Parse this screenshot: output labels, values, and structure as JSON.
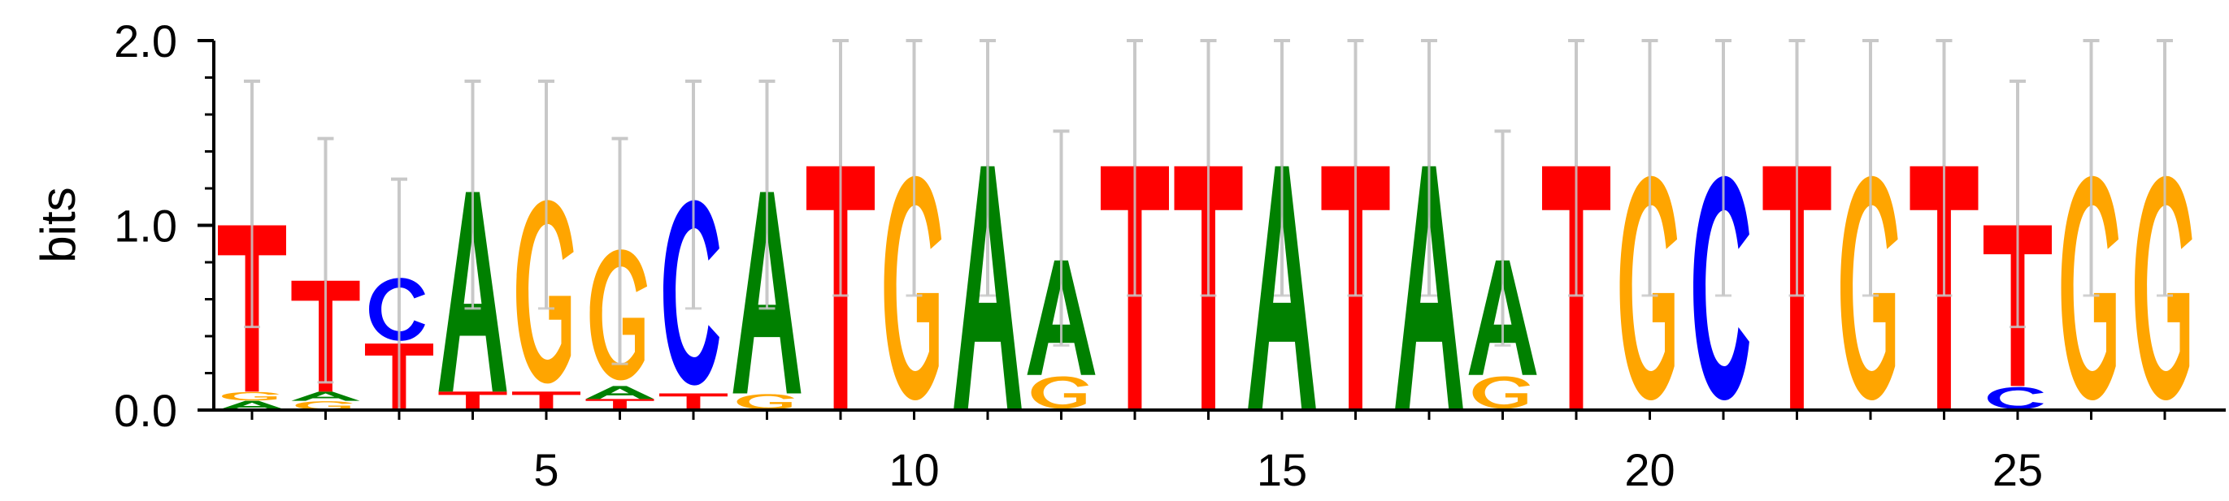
{
  "chart_data": {
    "type": "sequence-logo",
    "ylabel": "bits",
    "ylim": [
      0,
      2.0
    ],
    "y_ticks": [
      "0.0",
      "1.0",
      "2.0"
    ],
    "x_ticks": [
      "5",
      "10",
      "15",
      "20",
      "25"
    ],
    "x_tick_positions": [
      5,
      10,
      15,
      20,
      25
    ],
    "colors": {
      "A": "#008000",
      "C": "#0000ff",
      "G": "#ffa500",
      "T": "#ff0000",
      "error_bar": "#c8c8c8",
      "axis": "#000000"
    },
    "positions": [
      {
        "pos": 1,
        "stack": [
          {
            "base": "A",
            "height": 0.05
          },
          {
            "base": "G",
            "height": 0.05
          },
          {
            "base": "T",
            "height": 0.9
          }
        ],
        "error_bar": [
          0.45,
          1.78
        ]
      },
      {
        "pos": 2,
        "stack": [
          {
            "base": "G",
            "height": 0.05
          },
          {
            "base": "A",
            "height": 0.05
          },
          {
            "base": "T",
            "height": 0.6
          }
        ],
        "error_bar": [
          0.15,
          1.47
        ]
      },
      {
        "pos": 3,
        "stack": [
          {
            "base": "T",
            "height": 0.36
          },
          {
            "base": "C",
            "height": 0.37
          }
        ],
        "error_bar": [
          0.0,
          1.25
        ]
      },
      {
        "pos": 4,
        "stack": [
          {
            "base": "T",
            "height": 0.1
          },
          {
            "base": "A",
            "height": 1.08
          }
        ],
        "error_bar": [
          0.55,
          1.78
        ]
      },
      {
        "pos": 5,
        "stack": [
          {
            "base": "T",
            "height": 0.1
          },
          {
            "base": "G",
            "height": 1.08
          }
        ],
        "error_bar": [
          0.55,
          1.78
        ]
      },
      {
        "pos": 6,
        "stack": [
          {
            "base": "T",
            "height": 0.06
          },
          {
            "base": "A",
            "height": 0.07
          },
          {
            "base": "G",
            "height": 0.77
          }
        ],
        "error_bar": [
          0.25,
          1.47
        ]
      },
      {
        "pos": 7,
        "stack": [
          {
            "base": "T",
            "height": 0.09
          },
          {
            "base": "C",
            "height": 1.09
          }
        ],
        "error_bar": [
          0.55,
          1.78
        ]
      },
      {
        "pos": 8,
        "stack": [
          {
            "base": "G",
            "height": 0.09
          },
          {
            "base": "A",
            "height": 1.09
          }
        ],
        "error_bar": [
          0.55,
          1.78
        ]
      },
      {
        "pos": 9,
        "stack": [
          {
            "base": "T",
            "height": 1.32
          }
        ],
        "error_bar": [
          0.62,
          2.0
        ]
      },
      {
        "pos": 10,
        "stack": [
          {
            "base": "G",
            "height": 1.32
          }
        ],
        "error_bar": [
          0.62,
          2.0
        ]
      },
      {
        "pos": 11,
        "stack": [
          {
            "base": "A",
            "height": 1.32
          }
        ],
        "error_bar": [
          0.62,
          2.0
        ]
      },
      {
        "pos": 12,
        "stack": [
          {
            "base": "G",
            "height": 0.19
          },
          {
            "base": "A",
            "height": 0.62
          }
        ],
        "error_bar": [
          0.35,
          1.51
        ]
      },
      {
        "pos": 13,
        "stack": [
          {
            "base": "T",
            "height": 1.32
          }
        ],
        "error_bar": [
          0.62,
          2.0
        ]
      },
      {
        "pos": 14,
        "stack": [
          {
            "base": "T",
            "height": 1.32
          }
        ],
        "error_bar": [
          0.62,
          2.0
        ]
      },
      {
        "pos": 15,
        "stack": [
          {
            "base": "A",
            "height": 1.32
          }
        ],
        "error_bar": [
          0.62,
          2.0
        ]
      },
      {
        "pos": 16,
        "stack": [
          {
            "base": "T",
            "height": 1.32
          }
        ],
        "error_bar": [
          0.62,
          2.0
        ]
      },
      {
        "pos": 17,
        "stack": [
          {
            "base": "A",
            "height": 1.32
          }
        ],
        "error_bar": [
          0.62,
          2.0
        ]
      },
      {
        "pos": 18,
        "stack": [
          {
            "base": "G",
            "height": 0.19
          },
          {
            "base": "A",
            "height": 0.62
          }
        ],
        "error_bar": [
          0.35,
          1.51
        ]
      },
      {
        "pos": 19,
        "stack": [
          {
            "base": "T",
            "height": 1.32
          }
        ],
        "error_bar": [
          0.62,
          2.0
        ]
      },
      {
        "pos": 20,
        "stack": [
          {
            "base": "G",
            "height": 1.32
          }
        ],
        "error_bar": [
          0.62,
          2.0
        ]
      },
      {
        "pos": 21,
        "stack": [
          {
            "base": "C",
            "height": 1.32
          }
        ],
        "error_bar": [
          0.62,
          2.0
        ]
      },
      {
        "pos": 22,
        "stack": [
          {
            "base": "T",
            "height": 1.32
          }
        ],
        "error_bar": [
          0.62,
          2.0
        ]
      },
      {
        "pos": 23,
        "stack": [
          {
            "base": "G",
            "height": 1.32
          }
        ],
        "error_bar": [
          0.62,
          2.0
        ]
      },
      {
        "pos": 24,
        "stack": [
          {
            "base": "T",
            "height": 1.32
          }
        ],
        "error_bar": [
          0.62,
          2.0
        ]
      },
      {
        "pos": 25,
        "stack": [
          {
            "base": "C",
            "height": 0.13
          },
          {
            "base": "T",
            "height": 0.87
          }
        ],
        "error_bar": [
          0.45,
          1.78
        ]
      },
      {
        "pos": 26,
        "stack": [
          {
            "base": "G",
            "height": 1.32
          }
        ],
        "error_bar": [
          0.62,
          2.0
        ]
      },
      {
        "pos": 27,
        "stack": [
          {
            "base": "G",
            "height": 1.32
          }
        ],
        "error_bar": [
          0.62,
          2.0
        ]
      }
    ]
  }
}
